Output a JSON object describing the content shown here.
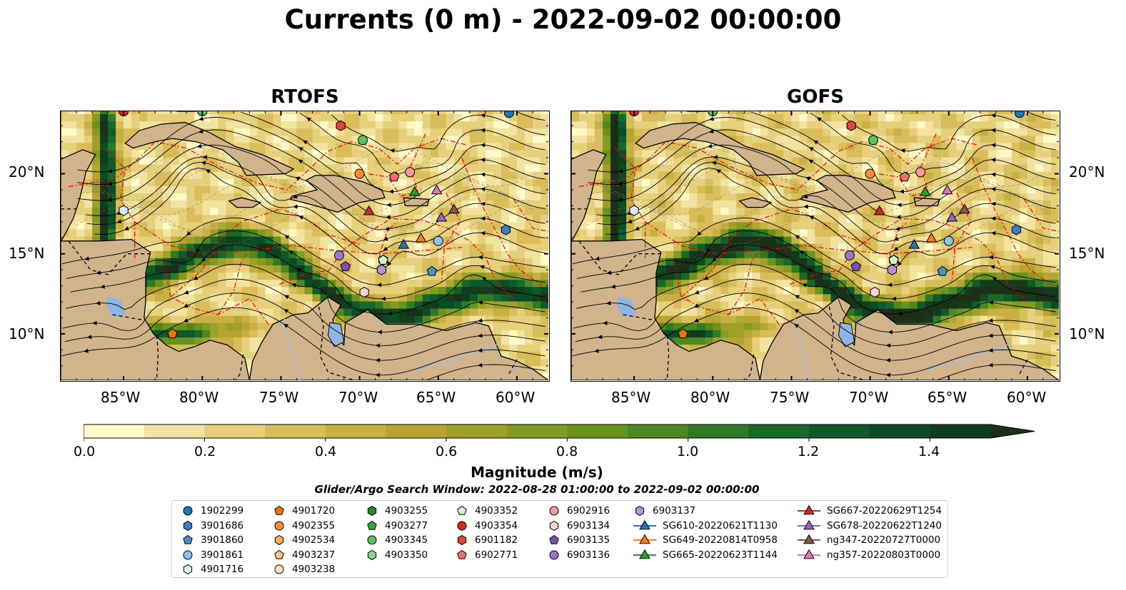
{
  "title": "Currents (0 m) - 2022-09-02 00:00:00",
  "panels": [
    {
      "title": "RTOFS",
      "strength": 1.0
    },
    {
      "title": "GOFS",
      "strength": 1.12
    }
  ],
  "axes": {
    "lon_ticks": [
      "85°W",
      "80°W",
      "75°W",
      "70°W",
      "65°W",
      "60°W"
    ],
    "lat_ticks": [
      "20°N",
      "15°N",
      "10°N"
    ]
  },
  "colorbar": {
    "label": "Magnitude (m/s)",
    "ticks": [
      "0.0",
      "0.2",
      "0.4",
      "0.6",
      "0.8",
      "1.0",
      "1.2",
      "1.4"
    ],
    "range": [
      0,
      1.5
    ],
    "extend": "max",
    "colors": [
      "#fffac8",
      "#f2e4a0",
      "#e6d07c",
      "#d8bd5a",
      "#c9b043",
      "#b7a532",
      "#9fa02a",
      "#849b22",
      "#6a921e",
      "#4f8820",
      "#2f7a24",
      "#166a2c",
      "#0e5a2a",
      "#0b4b25",
      "#133b1e",
      "#1c2f18"
    ]
  },
  "search_window": "Glider/Argo Search Window: 2022-08-28 01:00:00 to 2022-09-02 00:00:00",
  "legend": {
    "columns": [
      [
        {
          "label": "1902299",
          "marker": "circle",
          "color": "#1f77b4"
        },
        {
          "label": "3901686",
          "marker": "hexagon",
          "color": "#3a7fc0"
        },
        {
          "label": "3901860",
          "marker": "pentagon",
          "color": "#4a90d0"
        },
        {
          "label": "3901861",
          "marker": "circle",
          "color": "#8ec3ee"
        },
        {
          "label": "4901716",
          "marker": "hexagon",
          "color": "#d8ecfb"
        }
      ],
      [
        {
          "label": "4901720",
          "marker": "pentagon",
          "color": "#e8740a"
        },
        {
          "label": "4902355",
          "marker": "circle",
          "color": "#ff8c2e"
        },
        {
          "label": "4902534",
          "marker": "hexagon",
          "color": "#ffa95e"
        },
        {
          "label": "4903237",
          "marker": "pentagon",
          "color": "#ffc48e"
        },
        {
          "label": "4903238",
          "marker": "circle",
          "color": "#ffe1c4"
        }
      ],
      [
        {
          "label": "4903255",
          "marker": "hexagon",
          "color": "#1e8a2a"
        },
        {
          "label": "4903277",
          "marker": "pentagon",
          "color": "#37a63a"
        },
        {
          "label": "4903345",
          "marker": "circle",
          "color": "#56c45a"
        },
        {
          "label": "4903350",
          "marker": "hexagon",
          "color": "#8ad98a"
        }
      ],
      [
        {
          "label": "4903352",
          "marker": "pentagon",
          "color": "#cdf3c6"
        },
        {
          "label": "4903354",
          "marker": "circle",
          "color": "#d62728"
        },
        {
          "label": "6901182",
          "marker": "hexagon",
          "color": "#e2453f"
        },
        {
          "label": "6902771",
          "marker": "pentagon",
          "color": "#ef6f6c"
        }
      ],
      [
        {
          "label": "6902916",
          "marker": "circle",
          "color": "#f59a98"
        },
        {
          "label": "6903134",
          "marker": "hexagon",
          "color": "#fcd1d0"
        },
        {
          "label": "6903135",
          "marker": "pentagon",
          "color": "#7f4fb8"
        },
        {
          "label": "6903136",
          "marker": "circle",
          "color": "#9d74cc"
        }
      ],
      [
        {
          "label": "6903137",
          "marker": "hexagon",
          "color": "#b394dc"
        },
        {
          "label": "SG610-20220621T1130",
          "marker": "triangle",
          "color": "#1f77b4"
        },
        {
          "label": "SG649-20220814T0958",
          "marker": "triangle",
          "color": "#ff7f0e"
        },
        {
          "label": "SG665-20220623T1144",
          "marker": "triangle",
          "color": "#2ca02c"
        }
      ],
      [
        {
          "label": "SG667-20220629T1254",
          "marker": "triangle",
          "color": "#d62728"
        },
        {
          "label": "SG678-20220622T1240",
          "marker": "triangle",
          "color": "#9467bd"
        },
        {
          "label": "ng347-20220727T0000",
          "marker": "triangle",
          "color": "#8c564b"
        },
        {
          "label": "ng357-20220803T0000",
          "marker": "triangle",
          "color": "#e377c2"
        }
      ]
    ]
  }
}
